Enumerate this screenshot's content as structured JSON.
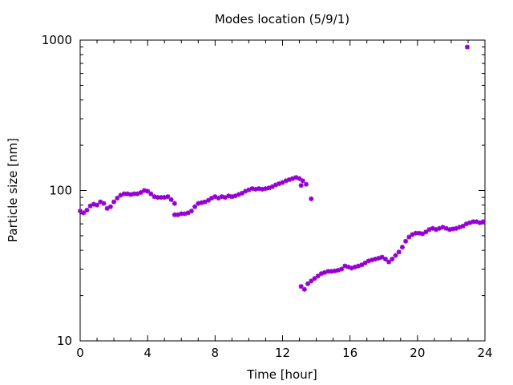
{
  "chart_data": {
    "type": "scatter",
    "title": "Modes location (5/9/1)",
    "xlabel": "Time [hour]",
    "ylabel": "Particle size [nm]",
    "xlim": [
      0,
      24
    ],
    "ylim": [
      10,
      1000
    ],
    "y_scale": "log",
    "x_ticks": [
      0,
      4,
      8,
      12,
      16,
      20,
      24
    ],
    "x_tick_labels": [
      "0",
      "4",
      "8",
      "12",
      "16",
      "20",
      "24"
    ],
    "y_ticks": [
      10,
      100,
      1000
    ],
    "y_tick_labels": [
      "10",
      "100",
      "1000"
    ],
    "grid": false,
    "legend": false,
    "marker_color": "#9400d3",
    "series": [
      {
        "x_y_pairs": [
          [
            0.0,
            73
          ],
          [
            0.2,
            71
          ],
          [
            0.4,
            74
          ],
          [
            0.6,
            79
          ],
          [
            0.8,
            81
          ],
          [
            1.0,
            80
          ],
          [
            1.2,
            84
          ],
          [
            1.4,
            82
          ],
          [
            1.6,
            76
          ],
          [
            1.8,
            78
          ],
          [
            2.0,
            84
          ],
          [
            2.2,
            89
          ],
          [
            2.4,
            93
          ],
          [
            2.6,
            95
          ],
          [
            2.8,
            95
          ],
          [
            3.0,
            94
          ],
          [
            3.2,
            95
          ],
          [
            3.4,
            95
          ],
          [
            3.6,
            97
          ],
          [
            3.8,
            100
          ],
          [
            4.0,
            99
          ],
          [
            4.2,
            95
          ],
          [
            4.4,
            91
          ],
          [
            4.6,
            90
          ],
          [
            4.8,
            90
          ],
          [
            5.0,
            90
          ],
          [
            5.2,
            91
          ],
          [
            5.4,
            87
          ],
          [
            5.6,
            82
          ],
          [
            5.6,
            69
          ],
          [
            5.8,
            69
          ],
          [
            6.0,
            70
          ],
          [
            6.2,
            70
          ],
          [
            6.4,
            71
          ],
          [
            6.6,
            73
          ],
          [
            6.8,
            78
          ],
          [
            7.0,
            82
          ],
          [
            7.2,
            83
          ],
          [
            7.4,
            84
          ],
          [
            7.6,
            86
          ],
          [
            7.8,
            89
          ],
          [
            8.0,
            91
          ],
          [
            8.2,
            89
          ],
          [
            8.4,
            91
          ],
          [
            8.6,
            90
          ],
          [
            8.8,
            92
          ],
          [
            9.0,
            91
          ],
          [
            9.2,
            92
          ],
          [
            9.4,
            94
          ],
          [
            9.6,
            96
          ],
          [
            9.8,
            99
          ],
          [
            10.0,
            101
          ],
          [
            10.2,
            103
          ],
          [
            10.4,
            102
          ],
          [
            10.6,
            103
          ],
          [
            10.8,
            102
          ],
          [
            11.0,
            103
          ],
          [
            11.2,
            104
          ],
          [
            11.4,
            106
          ],
          [
            11.6,
            109
          ],
          [
            11.8,
            111
          ],
          [
            12.0,
            113
          ],
          [
            12.2,
            116
          ],
          [
            12.4,
            118
          ],
          [
            12.6,
            120
          ],
          [
            12.8,
            122
          ],
          [
            13.0,
            120
          ],
          [
            13.2,
            116
          ],
          [
            13.4,
            110
          ],
          [
            13.1,
            108
          ],
          [
            13.7,
            88
          ],
          [
            13.1,
            23
          ],
          [
            13.3,
            22
          ],
          [
            13.5,
            24
          ],
          [
            13.7,
            25
          ],
          [
            13.9,
            26
          ],
          [
            14.1,
            27
          ],
          [
            14.3,
            28
          ],
          [
            14.5,
            28.5
          ],
          [
            14.7,
            29
          ],
          [
            14.9,
            29
          ],
          [
            15.1,
            29.2
          ],
          [
            15.3,
            29.5
          ],
          [
            15.5,
            30
          ],
          [
            15.7,
            31.5
          ],
          [
            15.9,
            31
          ],
          [
            16.1,
            30.5
          ],
          [
            16.3,
            31
          ],
          [
            16.5,
            31.5
          ],
          [
            16.7,
            32
          ],
          [
            16.9,
            33
          ],
          [
            17.1,
            34
          ],
          [
            17.3,
            34.5
          ],
          [
            17.5,
            35
          ],
          [
            17.7,
            35.5
          ],
          [
            17.9,
            36
          ],
          [
            18.1,
            35
          ],
          [
            18.3,
            33.5
          ],
          [
            18.5,
            35
          ],
          [
            18.7,
            37
          ],
          [
            18.9,
            39
          ],
          [
            19.1,
            42
          ],
          [
            19.3,
            46
          ],
          [
            19.5,
            49
          ],
          [
            19.7,
            51
          ],
          [
            19.9,
            52
          ],
          [
            20.1,
            52
          ],
          [
            20.3,
            51.5
          ],
          [
            20.5,
            53
          ],
          [
            20.7,
            55
          ],
          [
            20.9,
            56
          ],
          [
            21.1,
            55
          ],
          [
            21.3,
            56
          ],
          [
            21.5,
            57
          ],
          [
            21.7,
            56
          ],
          [
            21.9,
            55
          ],
          [
            22.1,
            55.5
          ],
          [
            22.3,
            56
          ],
          [
            22.5,
            57
          ],
          [
            22.7,
            58
          ],
          [
            22.9,
            60
          ],
          [
            23.1,
            61
          ],
          [
            23.3,
            62
          ],
          [
            23.5,
            62
          ],
          [
            23.7,
            61
          ],
          [
            23.9,
            62
          ],
          [
            22.95,
            900
          ]
        ]
      }
    ]
  }
}
